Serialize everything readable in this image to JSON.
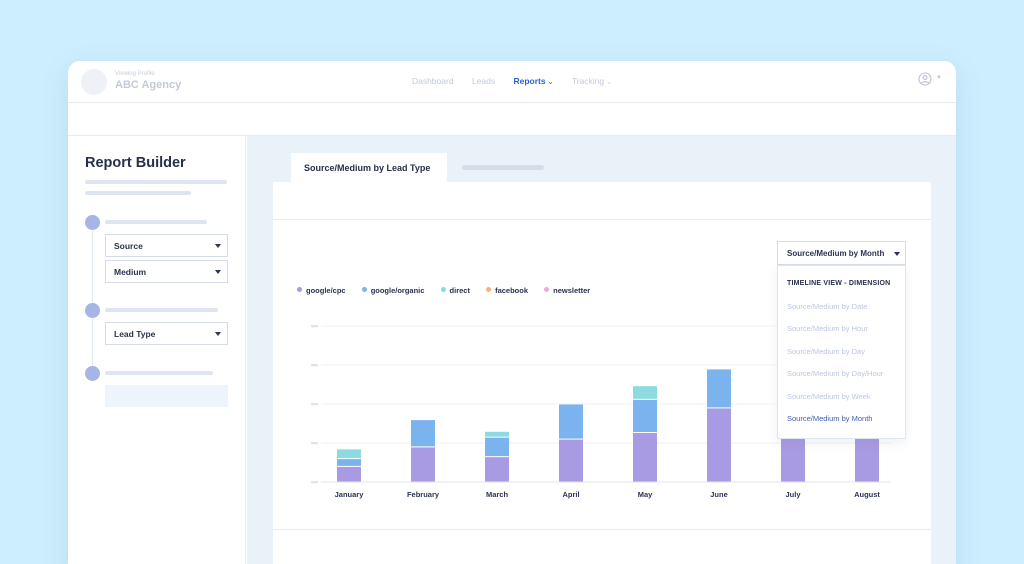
{
  "profile": {
    "caption": "Viewing Profile",
    "name": "ABC Agency"
  },
  "nav": {
    "items": [
      {
        "label": "Dashboard"
      },
      {
        "label": "Leads"
      },
      {
        "label": "Reports",
        "chevron": "⌄",
        "active": true
      },
      {
        "label": "Tracking",
        "chevron": "⌄"
      }
    ],
    "user_icon": "user-circle-icon"
  },
  "sidebar": {
    "title": "Report Builder",
    "step1": {
      "selects": [
        "Source",
        "Medium"
      ]
    },
    "step2": {
      "selects": [
        "Lead Type"
      ]
    }
  },
  "tabs": {
    "active_label": "Source/Medium by Lead Type"
  },
  "dropdown": {
    "selected": "Source/Medium by Month",
    "header": "TIMELINE VIEW - DIMENSION",
    "options": [
      "Source/Medium by Date",
      "Source/Medium by Hour",
      "Source/Medium by Day",
      "Source/Medium by Day/Hour",
      "Source/Medium by Week",
      "Source/Medium by Month"
    ],
    "selected_index": 5
  },
  "colors": {
    "google_cpc": "#a99be3",
    "google_organic": "#7ab3ee",
    "direct": "#8cdbe0",
    "facebook": "#f7b07a",
    "newsletter": "#f3a6e0",
    "accent": "#2c5fd4"
  },
  "chart_data": {
    "type": "bar",
    "stacked": true,
    "categories": [
      "January",
      "February",
      "March",
      "April",
      "May",
      "June",
      "July",
      "August"
    ],
    "series": [
      {
        "name": "google/cpc",
        "color": "#a99be3",
        "values": [
          4,
          9,
          6.5,
          11,
          12.7,
          19,
          19.5,
          16
        ]
      },
      {
        "name": "google/organic",
        "color": "#7ab3ee",
        "values": [
          2,
          7,
          5,
          9,
          8.5,
          10,
          13.5,
          0
        ]
      },
      {
        "name": "direct",
        "color": "#8cdbe0",
        "values": [
          2.5,
          0,
          1.5,
          0,
          3.5,
          0,
          0,
          0
        ]
      },
      {
        "name": "facebook",
        "color": "#f7b07a",
        "values": [
          0,
          0,
          0,
          0,
          0,
          0,
          0,
          0
        ]
      },
      {
        "name": "newsletter",
        "color": "#f3a6e0",
        "values": [
          0,
          0,
          0,
          0,
          0,
          0,
          0,
          0
        ]
      }
    ],
    "ylim": [
      0,
      40
    ],
    "yticks": [
      0,
      10,
      20,
      30,
      40
    ],
    "ytick_labels_visible": false,
    "grid": true,
    "legend_position": "top-left",
    "title": "",
    "xlabel": "",
    "ylabel": ""
  }
}
